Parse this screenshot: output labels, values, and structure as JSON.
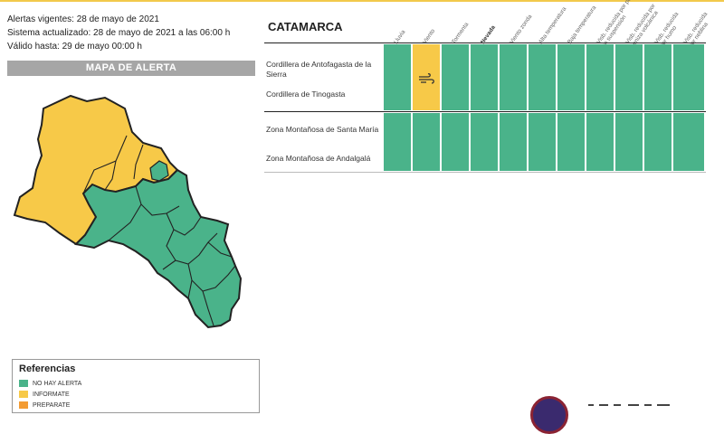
{
  "header": {
    "alertas_vigentes": "Alertas vigentes: 28 de mayo de 2021",
    "sistema_actualizado": "Sistema actualizado: 28 de mayo de 2021 a las 06:00 h",
    "valido_hasta": "Válido hasta: 29 de mayo 00:00 h"
  },
  "map": {
    "title": "MAPA DE ALERTA"
  },
  "references": {
    "title": "Referencias",
    "items": [
      {
        "label": "NO HAY ALERTA",
        "color": "#4ab38a"
      },
      {
        "label": "INFORMATE",
        "color": "#f7c948"
      },
      {
        "label": "PREPARATE",
        "color": "#f39c33"
      }
    ]
  },
  "table": {
    "region": "CATAMARCA",
    "columns": [
      "Lluvia",
      "Viento",
      "Tormenta",
      "Nevada",
      "Viento zonda",
      "Alta temperatura",
      "Baja temperatura",
      "Visb. reducida por polvo en suspensión",
      "Visb. reducida por ceniza volcánica",
      "Visb. reducida por humo",
      "Visb. reducida por neblina"
    ],
    "zones": [
      "Cordillera de Antofagasta de la Sierra",
      "Cordillera de Tinogasta",
      "Zona Montañosa de Santa María",
      "Zona Montañosa de Andalgalá"
    ],
    "status_colors": {
      "no_alert": "#4ab38a",
      "informate": "#f7c948"
    },
    "alerts": [
      {
        "zones": [
          "Cordillera de Antofagasta de la Sierra",
          "Cordillera de Tinogasta"
        ],
        "column": "Viento",
        "level": "informate",
        "icon": "wind-icon"
      }
    ]
  }
}
